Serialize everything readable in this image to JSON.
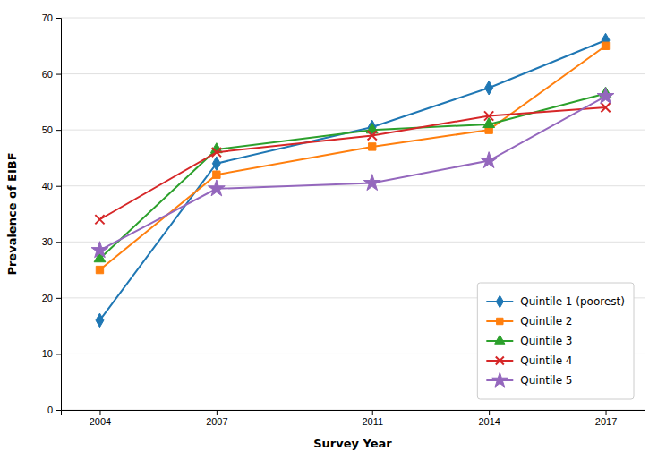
{
  "chart_data": {
    "type": "line",
    "x": [
      2004,
      2007,
      2011,
      2014,
      2017
    ],
    "series": [
      {
        "name": "Quintile 1 (poorest)",
        "values": [
          16,
          44,
          50.5,
          57.5,
          66
        ],
        "marker": "diamond",
        "line_style": "solid"
      },
      {
        "name": "Quintile 2",
        "values": [
          25,
          42,
          47,
          50,
          65
        ],
        "marker": "square",
        "line_style": "solid"
      },
      {
        "name": "Quintile 3",
        "values": [
          27,
          46.5,
          50,
          51,
          56.5
        ],
        "marker": "triangle",
        "line_style": "solid"
      },
      {
        "name": "Quintile 4",
        "values": [
          34,
          46,
          49,
          52.5,
          54
        ],
        "marker": "x",
        "line_style": "solid"
      },
      {
        "name": "Quintile 5",
        "values": [
          28.5,
          39.5,
          40.5,
          44.5,
          56
        ],
        "marker": "star",
        "line_style": "solid"
      }
    ],
    "xlabel": "Survey Year",
    "ylabel": "Prevalence of EIBF",
    "xlim": [
      2003,
      2018
    ],
    "xticks": [
      2004,
      2007,
      2011,
      2014,
      2017
    ],
    "ylim": [
      0,
      70
    ],
    "yticks": [
      0,
      10,
      20,
      30,
      40,
      50,
      60,
      70
    ],
    "grid": true,
    "legend": "lower right"
  }
}
